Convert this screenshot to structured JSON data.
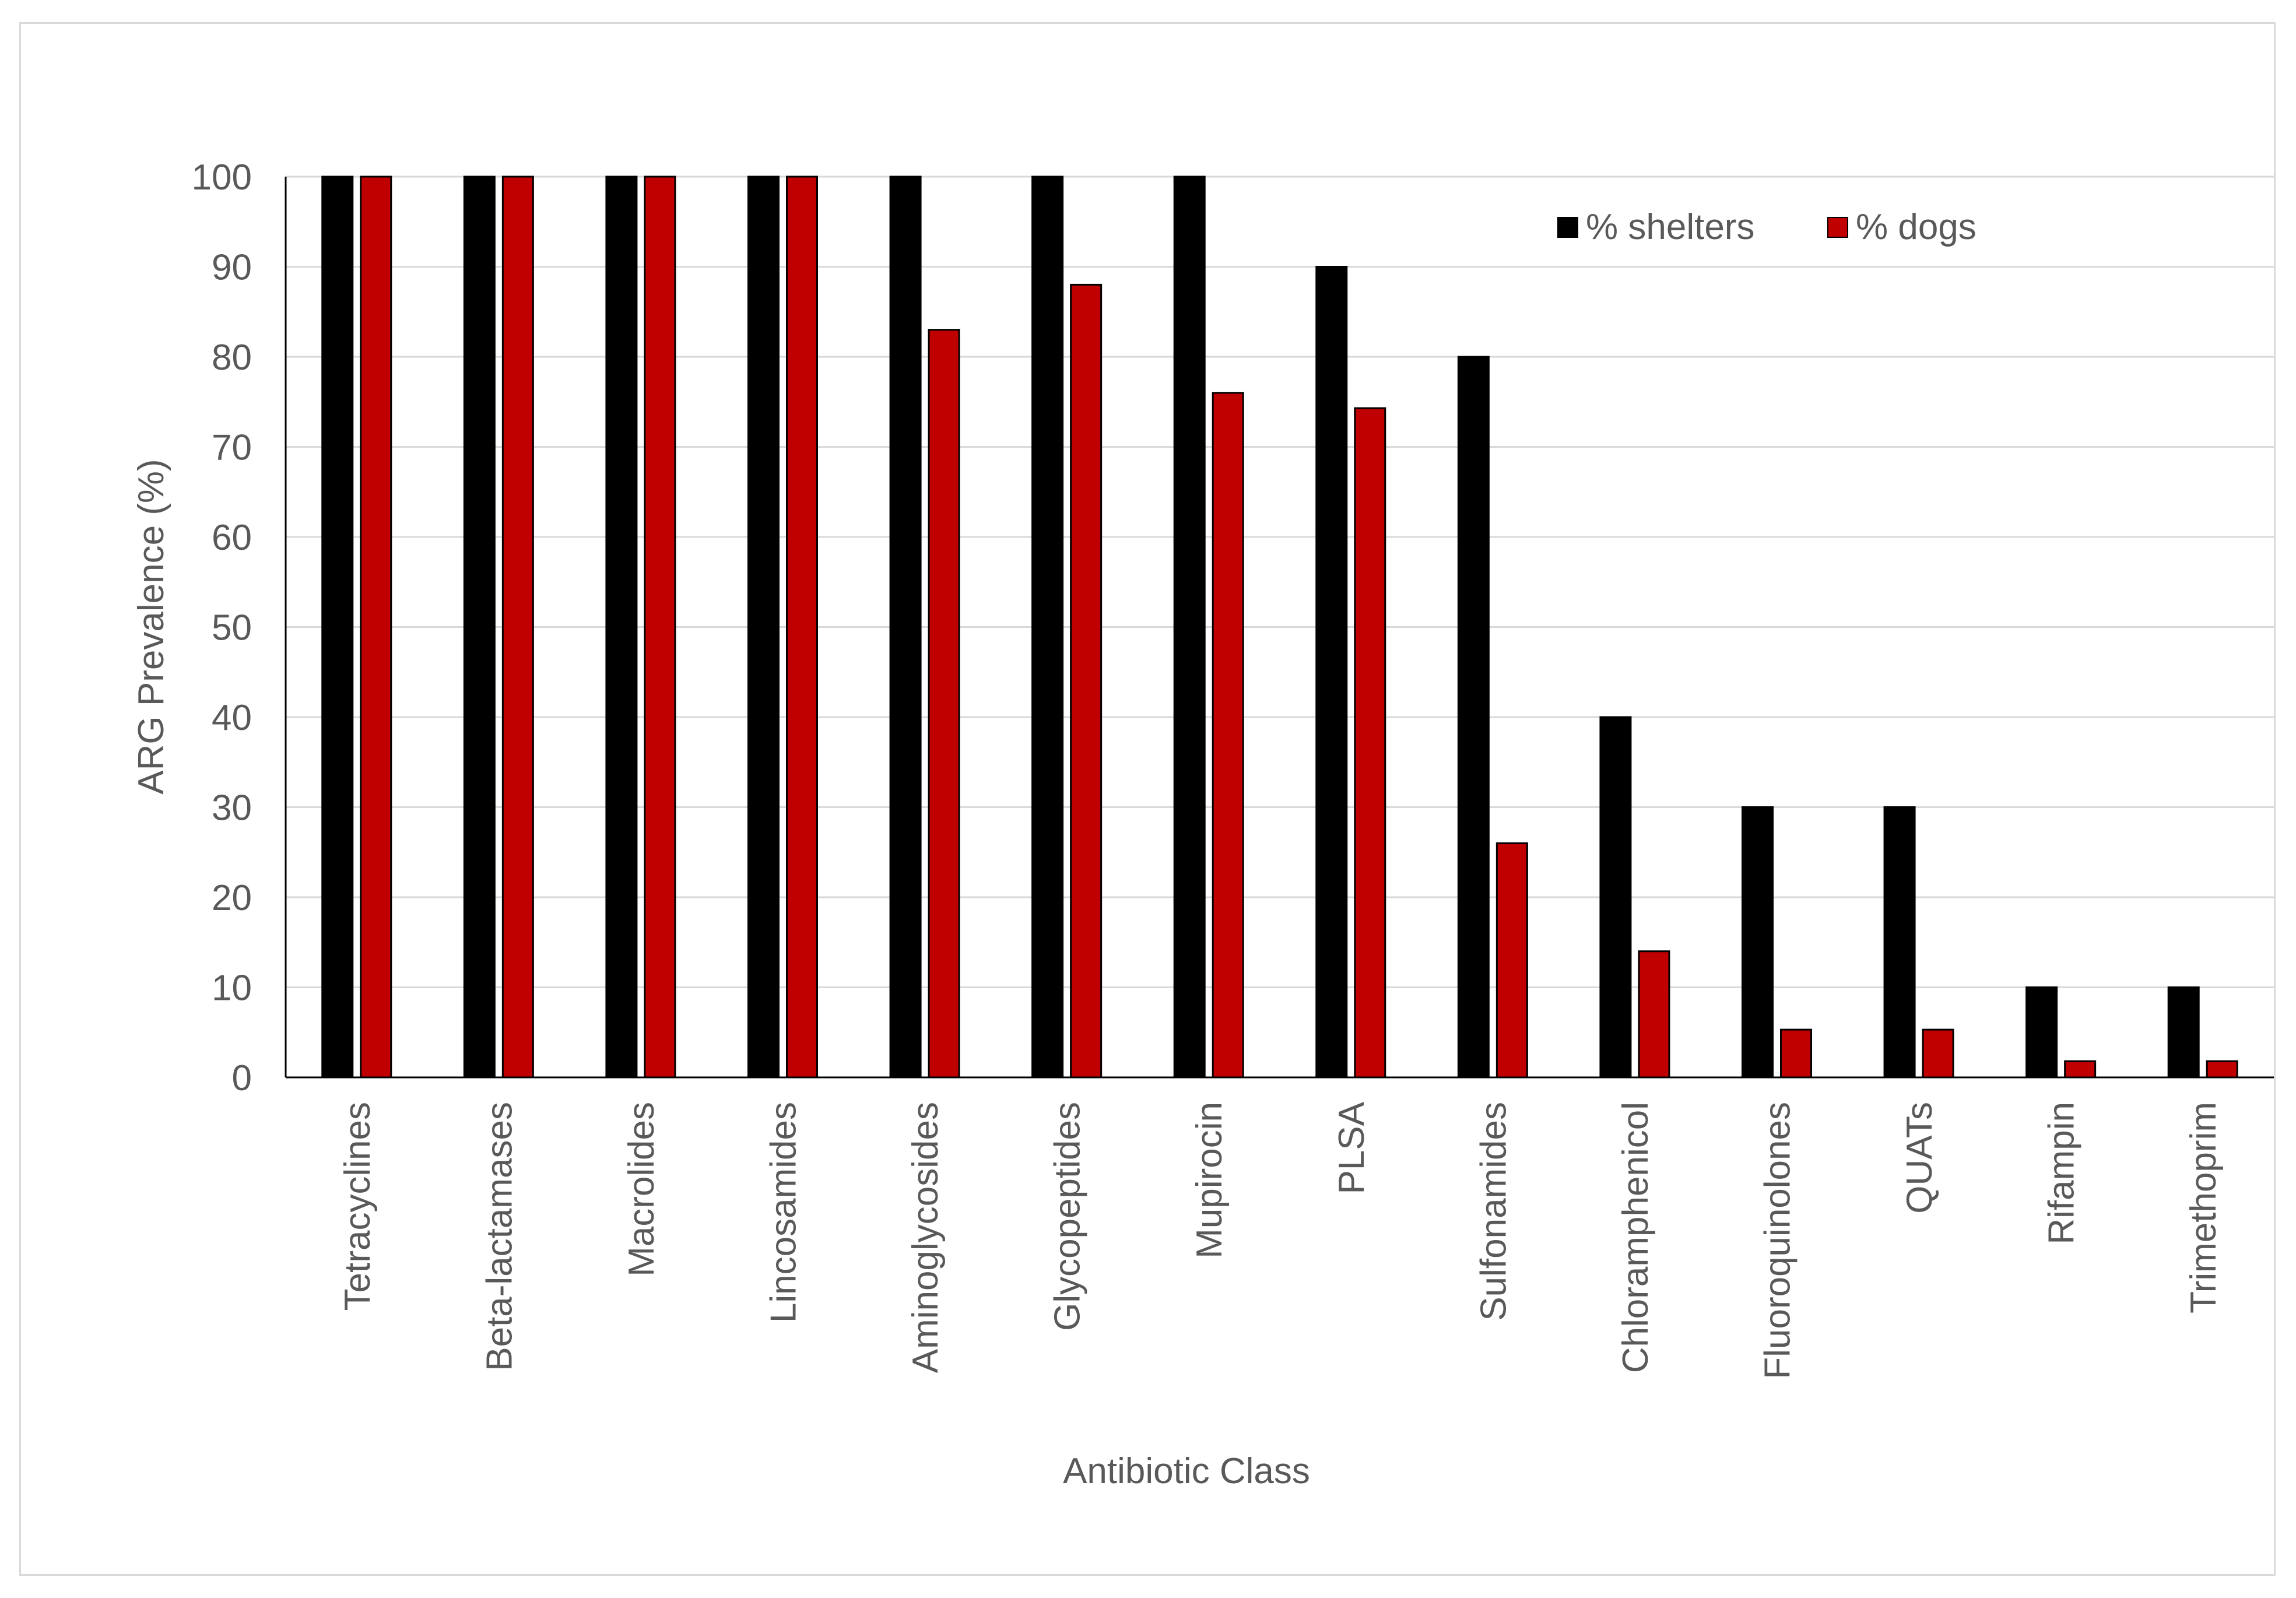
{
  "chart_data": {
    "type": "bar",
    "title": "",
    "xlabel": "Antibiotic Class",
    "ylabel": "ARG Prevalence  (%)",
    "ylim": [
      0,
      100
    ],
    "yticks": [
      0,
      10,
      20,
      30,
      40,
      50,
      60,
      70,
      80,
      90,
      100
    ],
    "grid": true,
    "legend_position": "top-right",
    "categories": [
      "Tetracyclines",
      "Beta-lactamases",
      "Macrolides",
      "Lincosamides",
      "Aminoglycosides",
      "Glycopeptides",
      "Mupirocin",
      "PLSA",
      "Sulfonamides",
      "Chloramphenicol",
      "Fluoroquinolones",
      "QUATs",
      "Rifampin",
      "Trimethoprim"
    ],
    "series": [
      {
        "name": "% shelters",
        "color": "#000000",
        "values": [
          100,
          100,
          100,
          100,
          100,
          100,
          100,
          90,
          80,
          40,
          30,
          30,
          10,
          10
        ]
      },
      {
        "name": "% dogs",
        "color": "#c00000",
        "values": [
          100,
          100,
          100,
          100,
          83,
          88,
          76,
          74.3,
          26,
          14,
          5.3,
          5.3,
          1.8,
          1.8
        ]
      }
    ]
  }
}
